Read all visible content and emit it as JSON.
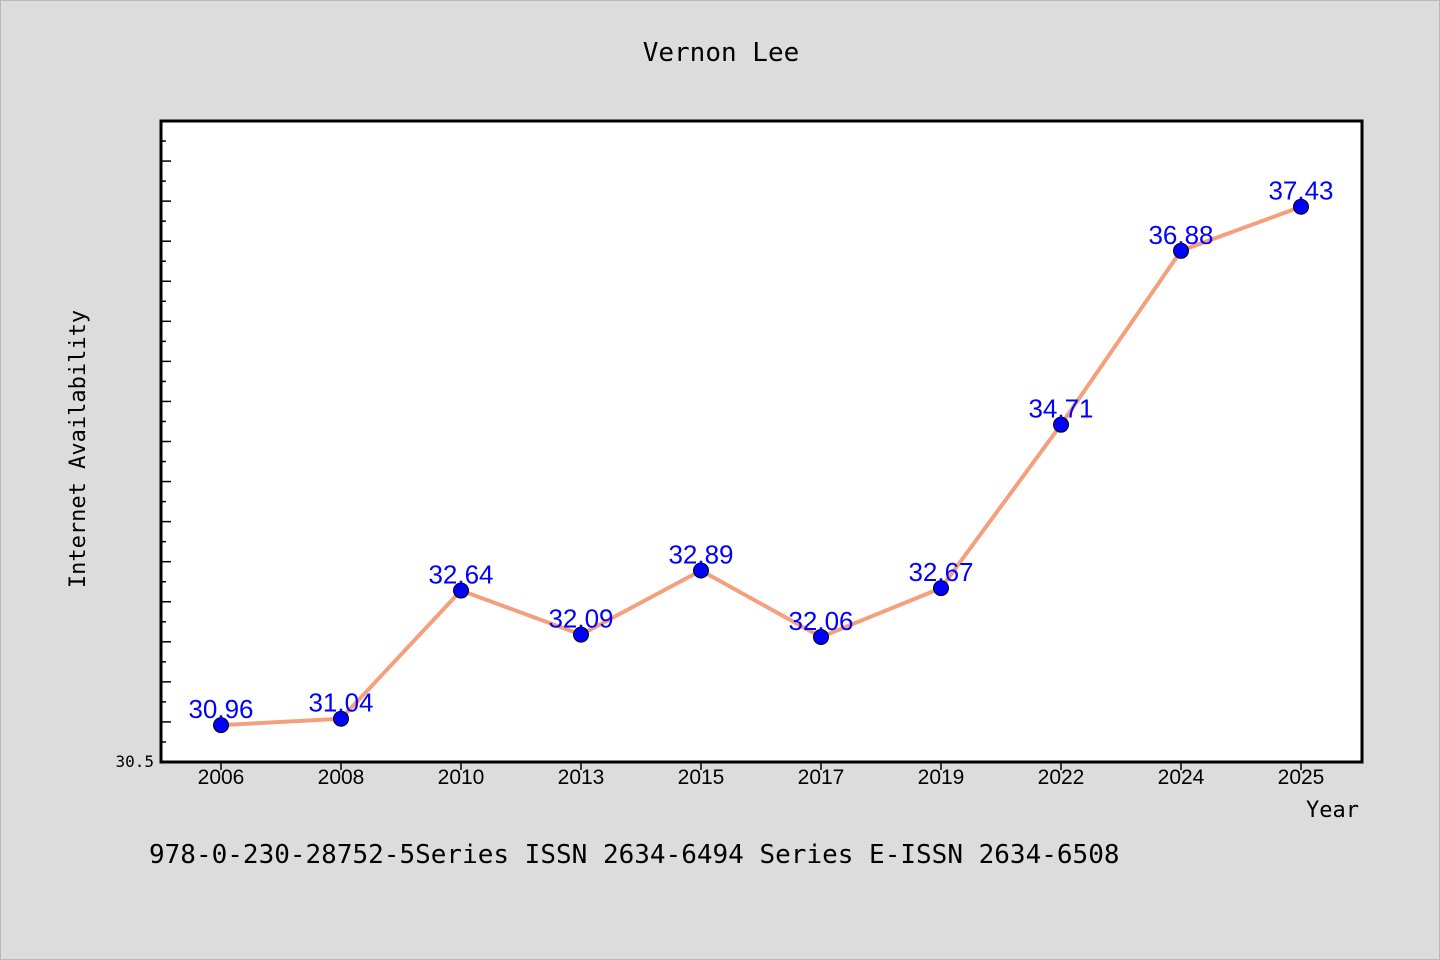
{
  "chart_data": {
    "type": "line",
    "title": "Vernon Lee",
    "xlabel": "Year",
    "ylabel": "Internet Availability",
    "categories": [
      "2006",
      "2008",
      "2010",
      "2013",
      "2015",
      "2017",
      "2019",
      "2022",
      "2024",
      "2025"
    ],
    "series": [
      {
        "values": [
          30.96,
          31.04,
          32.64,
          32.09,
          32.89,
          32.06,
          32.67,
          34.71,
          36.88,
          37.43
        ]
      }
    ],
    "value_labels": [
      "30.96",
      "31.04",
      "32.64",
      "32.09",
      "32.89",
      "32.06",
      "32.67",
      "34.71",
      "36.88",
      "37.43"
    ],
    "ylim": [
      30.5,
      38.5
    ],
    "yticks_labeled": [
      "30.5"
    ],
    "grid": false,
    "legend": "none",
    "colors": {
      "line": "#f4a07c",
      "marker": "#0000ff",
      "data_label": "#0000ff",
      "plot_background": "#ffffff",
      "page_background": "#dcdcdc"
    }
  },
  "footer": {
    "text": "978-0-230-28752-5Series ISSN 2634-6494 Series E-ISSN 2634-6508"
  }
}
